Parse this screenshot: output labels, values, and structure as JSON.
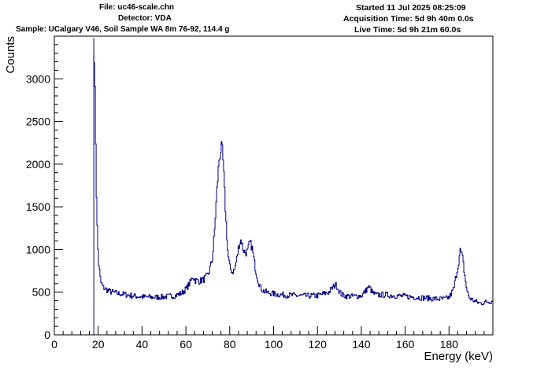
{
  "header": {
    "file": "File: uc46-scale.chn",
    "detector": "Detector: VDA",
    "sample": "Sample: UCalgary V46, Soil Sample WA 8m 76-92, 114.4 g",
    "started": "Started 11 Jul 2025 08:25:09",
    "acquisition": "Acquisition Time: 5d 9h 40m 0.0s",
    "live": "Live Time: 5d 9h 21m 60.0s"
  },
  "chart_data": {
    "type": "line",
    "style": "step",
    "line_color": "#000080",
    "xlabel": "Energy (keV)",
    "ylabel": "Counts",
    "xlim": [
      0,
      200
    ],
    "ylim": [
      0,
      3500
    ],
    "xticks": [
      0,
      20,
      40,
      60,
      80,
      100,
      120,
      140,
      160,
      180
    ],
    "yticks": [
      0,
      500,
      1000,
      1500,
      2000,
      2500,
      3000
    ],
    "grid": false,
    "x": [
      18,
      18.5,
      19,
      19.5,
      20,
      21,
      22,
      23,
      25,
      28,
      30,
      33,
      36,
      40,
      45,
      50,
      55,
      58,
      60,
      62,
      63,
      64,
      66,
      68,
      70,
      72,
      73,
      74,
      75,
      76,
      76.5,
      77,
      78,
      79,
      80,
      81,
      82,
      83,
      84,
      85,
      86,
      87,
      88,
      89,
      90,
      91,
      92,
      93,
      94,
      95,
      96,
      97,
      98,
      100,
      103,
      106,
      110,
      115,
      120,
      125,
      127,
      128,
      129,
      130,
      131,
      133,
      136,
      140,
      142,
      143,
      144,
      145,
      147,
      150,
      155,
      160,
      165,
      170,
      175,
      178,
      180,
      182,
      184,
      185,
      186,
      187,
      188,
      189,
      190,
      192,
      194,
      196,
      198,
      200
    ],
    "y": [
      3280,
      2650,
      1700,
      1150,
      850,
      620,
      560,
      540,
      510,
      490,
      480,
      470,
      455,
      445,
      440,
      445,
      460,
      490,
      540,
      620,
      690,
      640,
      630,
      650,
      700,
      900,
      1250,
      1700,
      2050,
      2200,
      2150,
      1950,
      1400,
      950,
      780,
      740,
      760,
      880,
      1050,
      1120,
      1000,
      960,
      980,
      1080,
      1030,
      860,
      720,
      620,
      550,
      520,
      505,
      495,
      490,
      480,
      470,
      465,
      460,
      455,
      460,
      500,
      560,
      590,
      560,
      500,
      470,
      455,
      450,
      460,
      520,
      560,
      540,
      490,
      465,
      470,
      460,
      450,
      440,
      430,
      420,
      420,
      440,
      540,
      820,
      990,
      900,
      700,
      520,
      440,
      420,
      390,
      370,
      380,
      390,
      400
    ]
  }
}
